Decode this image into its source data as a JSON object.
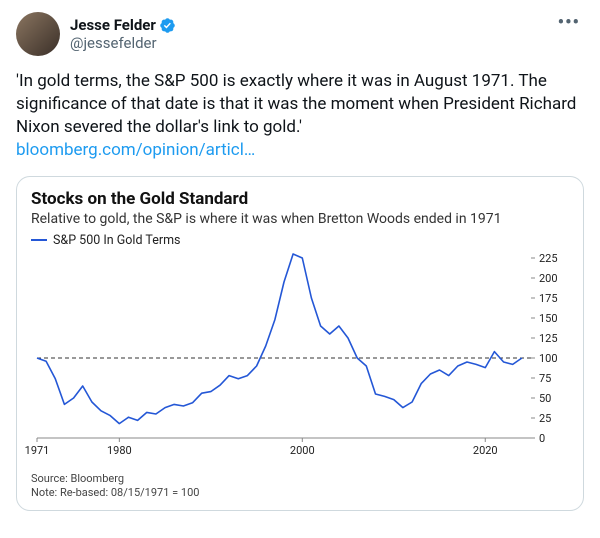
{
  "tweet": {
    "display_name": "Jesse Felder",
    "handle": "@jessefelder",
    "body_text": "'In gold terms, the S&P 500 is exactly where it was in August 1971. The significance of that date is that it was the moment when President Richard Nixon severed the dollar's link to gold.'",
    "link_text": "bloomberg.com/opinion/articl…"
  },
  "chart": {
    "type": "line",
    "title": "Stocks on the Gold Standard",
    "subtitle": "Relative to gold, the S&P is where it was when Bretton Woods ended in 1971",
    "legend_label": "S&P 500 In Gold Terms",
    "series_color": "#2457d6",
    "reference_line_value": 100,
    "reference_line_color": "#333333",
    "background_color": "#ffffff",
    "axis_color": "#888888",
    "text_color": "#222222",
    "ylim": [
      0,
      225
    ],
    "ytick_step": 25,
    "yticks": [
      0,
      25,
      50,
      75,
      100,
      125,
      150,
      175,
      200,
      225
    ],
    "xlim": [
      1971,
      2025
    ],
    "xticks": [
      1971,
      1980,
      2000,
      2020
    ],
    "line_width": 1.6,
    "series": [
      {
        "x": 1971,
        "y": 100
      },
      {
        "x": 1972,
        "y": 96
      },
      {
        "x": 1973,
        "y": 74
      },
      {
        "x": 1974,
        "y": 42
      },
      {
        "x": 1975,
        "y": 50
      },
      {
        "x": 1976,
        "y": 65
      },
      {
        "x": 1977,
        "y": 45
      },
      {
        "x": 1978,
        "y": 34
      },
      {
        "x": 1979,
        "y": 28
      },
      {
        "x": 1980,
        "y": 18
      },
      {
        "x": 1981,
        "y": 26
      },
      {
        "x": 1982,
        "y": 22
      },
      {
        "x": 1983,
        "y": 32
      },
      {
        "x": 1984,
        "y": 30
      },
      {
        "x": 1985,
        "y": 38
      },
      {
        "x": 1986,
        "y": 42
      },
      {
        "x": 1987,
        "y": 40
      },
      {
        "x": 1988,
        "y": 44
      },
      {
        "x": 1989,
        "y": 56
      },
      {
        "x": 1990,
        "y": 58
      },
      {
        "x": 1991,
        "y": 66
      },
      {
        "x": 1992,
        "y": 78
      },
      {
        "x": 1993,
        "y": 74
      },
      {
        "x": 1994,
        "y": 78
      },
      {
        "x": 1995,
        "y": 90
      },
      {
        "x": 1996,
        "y": 115
      },
      {
        "x": 1997,
        "y": 148
      },
      {
        "x": 1998,
        "y": 195
      },
      {
        "x": 1999,
        "y": 230
      },
      {
        "x": 2000,
        "y": 225
      },
      {
        "x": 2001,
        "y": 175
      },
      {
        "x": 2002,
        "y": 140
      },
      {
        "x": 2003,
        "y": 130
      },
      {
        "x": 2004,
        "y": 140
      },
      {
        "x": 2005,
        "y": 125
      },
      {
        "x": 2006,
        "y": 100
      },
      {
        "x": 2007,
        "y": 90
      },
      {
        "x": 2008,
        "y": 55
      },
      {
        "x": 2009,
        "y": 52
      },
      {
        "x": 2010,
        "y": 48
      },
      {
        "x": 2011,
        "y": 38
      },
      {
        "x": 2012,
        "y": 45
      },
      {
        "x": 2013,
        "y": 68
      },
      {
        "x": 2014,
        "y": 80
      },
      {
        "x": 2015,
        "y": 85
      },
      {
        "x": 2016,
        "y": 78
      },
      {
        "x": 2017,
        "y": 90
      },
      {
        "x": 2018,
        "y": 95
      },
      {
        "x": 2019,
        "y": 92
      },
      {
        "x": 2020,
        "y": 88
      },
      {
        "x": 2021,
        "y": 108
      },
      {
        "x": 2022,
        "y": 95
      },
      {
        "x": 2023,
        "y": 92
      },
      {
        "x": 2024,
        "y": 100
      }
    ],
    "source_text": "Source: Bloomberg",
    "note_text": "Note: Re-based: 08/15/1971 = 100"
  },
  "colors": {
    "link": "#1d9bf0",
    "verified": "#1d9bf0",
    "text_primary": "#0f1419",
    "text_secondary": "#536471",
    "border": "#cfd9de"
  }
}
